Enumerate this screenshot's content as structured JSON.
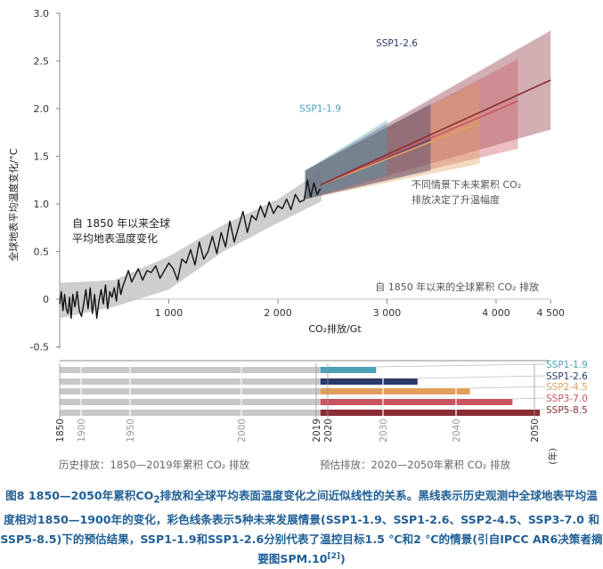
{
  "chart_data": [
    {
      "type": "line",
      "ylabel": "全球地表平均温度变化/°C",
      "xlabel": "CO₂排放/Gt",
      "x_ticks": [
        "1 000",
        "2 000",
        "3 000",
        "4 000",
        "4 500"
      ],
      "x_tick_values": [
        1000,
        2000,
        3000,
        4000,
        4500
      ],
      "y_ticks": [
        "3.0",
        "2.5",
        "2.0",
        "1.5",
        "1.0",
        "0.5",
        "0",
        "-0.5"
      ],
      "y_tick_values": [
        3.0,
        2.5,
        2.0,
        1.5,
        1.0,
        0.5,
        0,
        -0.5
      ],
      "xlim": [
        0,
        4500
      ],
      "ylim": [
        -0.5,
        3.0
      ],
      "annotations": {
        "historical": "自 1850 年以来全球\n平均地表温度变化",
        "scenarios": "不同情景下未来累积 CO₂\n排放决定了升温幅度",
        "cumulative": "自 1850 年以来的全球累积 CO₂ 排放"
      },
      "historical_series": {
        "x": [
          0,
          15,
          30,
          45,
          60,
          75,
          90,
          105,
          120,
          140,
          160,
          180,
          200,
          220,
          240,
          260,
          280,
          300,
          320,
          340,
          360,
          380,
          400,
          420,
          440,
          460,
          480,
          500,
          520,
          540,
          560,
          580,
          600,
          630,
          660,
          690,
          720,
          760,
          800,
          840,
          880,
          920,
          960,
          1000,
          1040,
          1080,
          1120,
          1160,
          1200,
          1240,
          1280,
          1320,
          1360,
          1400,
          1440,
          1480,
          1520,
          1560,
          1600,
          1640,
          1680,
          1720,
          1760,
          1800,
          1840,
          1880,
          1920,
          1960,
          2000,
          2040,
          2080,
          2120,
          2160,
          2200,
          2240,
          2270,
          2300,
          2330,
          2360,
          2390
        ],
        "y": [
          -0.05,
          0.08,
          -0.12,
          0.05,
          -0.1,
          -0.15,
          0.02,
          -0.2,
          0.05,
          -0.08,
          0.08,
          -0.12,
          -0.18,
          -0.05,
          0.1,
          -0.1,
          0.12,
          -0.15,
          0.05,
          -0.2,
          -0.02,
          0.1,
          -0.05,
          0.15,
          -0.1,
          0.08,
          0.02,
          0.12,
          -0.02,
          0.2,
          0.05,
          0.14,
          0.2,
          0.3,
          0.18,
          0.25,
          0.32,
          0.2,
          0.3,
          0.28,
          0.35,
          0.22,
          0.3,
          0.38,
          0.32,
          0.2,
          0.42,
          0.38,
          0.52,
          0.36,
          0.6,
          0.42,
          0.5,
          0.66,
          0.48,
          0.7,
          0.55,
          0.82,
          0.6,
          0.76,
          0.92,
          0.7,
          0.88,
          0.83,
          0.98,
          0.86,
          1.02,
          0.9,
          0.98,
          0.95,
          1.05,
          0.94,
          1.1,
          1.02,
          1.04,
          1.25,
          1.07,
          1.22,
          1.1,
          1.16
        ],
        "uncertainty_band": {
          "x": [
            0,
            500,
            1000,
            1500,
            2000,
            2400
          ],
          "lower": [
            -0.2,
            -0.08,
            0.1,
            0.5,
            0.8,
            1.03
          ],
          "upper": [
            0.17,
            0.2,
            0.45,
            0.78,
            1.05,
            1.35
          ]
        },
        "color": "#111111"
      },
      "series": [
        {
          "name": "SSP1-1.9",
          "color": "#4aa1b8",
          "x_end": 3000,
          "central_end": 1.52,
          "band_end": [
            1.3,
            1.88
          ]
        },
        {
          "name": "SSP1-2.6",
          "color": "#2b3a68",
          "x_end": 3400,
          "central_end": 1.68,
          "band_end": [
            1.35,
            2.05
          ]
        },
        {
          "name": "SSP2-4.5",
          "color": "#e29f5c",
          "x_end": 3850,
          "central_end": 1.85,
          "band_end": [
            1.42,
            2.28
          ]
        },
        {
          "name": "SSP3-7.0",
          "color": "#c9545e",
          "x_end": 4200,
          "central_end": 2.08,
          "band_end": [
            1.58,
            2.52
          ]
        },
        {
          "name": "SSP5-8.5",
          "color": "#8a2e36",
          "x_end": 4500,
          "central_end": 2.3,
          "band_end": [
            1.78,
            2.82
          ]
        }
      ],
      "scenario_start": {
        "x": 2390,
        "y": 1.2
      }
    },
    {
      "type": "bar",
      "legend": [
        "SSP1-1.9",
        "SSP1-2.6",
        "SSP2-4.5",
        "SSP3-7.0",
        "SSP5-8.5"
      ],
      "x_ticks": [
        "1850",
        "1900",
        "1950",
        "2000",
        "2019",
        "2020",
        "2030",
        "2040",
        "2050"
      ],
      "x_unit": "(年)",
      "historical_label": "历史排放：1850—2019年累积 CO₂ 排放",
      "future_label": "预估排放：2020—2050年累积 CO₂ 排放",
      "historical_color": "#c8c8c8",
      "bars": [
        {
          "name": "SSP1-1.9",
          "hist_end": 2390,
          "future_end": 2900
        },
        {
          "name": "SSP1-2.6",
          "hist_end": 2390,
          "future_end": 3280
        },
        {
          "name": "SSP2-4.5",
          "hist_end": 2390,
          "future_end": 3760
        },
        {
          "name": "SSP3-7.0",
          "hist_end": 2390,
          "future_end": 4150
        },
        {
          "name": "SSP5-8.5",
          "hist_end": 2390,
          "future_end": 4400
        }
      ]
    }
  ],
  "caption": {
    "part1": "图8 1850—2050年累积CO",
    "sub": "2",
    "part2": "排放和全球平均表面温度变化之间近似线性的关系。黑线表示历史观测中全球地表平均温度相对1850—1900年的变化，彩色线条表示5种未来发展情景(SSP1-1.9、SSP1-2.6、SSP2-4.5、SSP3-7.0 和SSP5-8.5)下的预估结果，SSP1-1.9和SSP1-2.6分别代表了温控目标1.5 ℃和2 ℃的情景(引自IPCC AR6决策者摘要图SPM.10",
    "ref": "[2]",
    "part3": ")"
  }
}
